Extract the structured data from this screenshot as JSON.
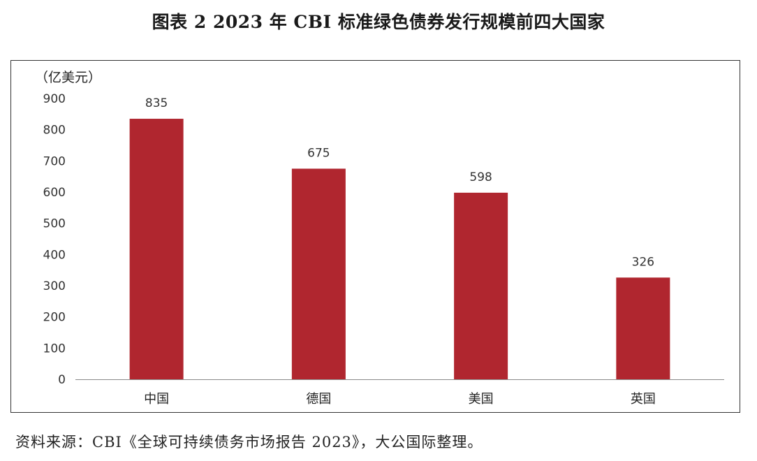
{
  "title": "图表 2  2023 年 CBI 标准绿色债券发行规模前四大国家",
  "unit_label": "（亿美元）",
  "source": "资料来源：CBI《全球可持续债务市场报告 2023》，大公国际整理。",
  "colors": {
    "bar": "#b0262f",
    "axis": "#888888"
  },
  "chart_data": {
    "type": "bar",
    "categories": [
      "中国",
      "德国",
      "美国",
      "英国"
    ],
    "values": [
      835,
      675,
      598,
      326
    ],
    "ylabel": "（亿美元）",
    "ylim": [
      0,
      900
    ],
    "yticks": [
      0,
      100,
      200,
      300,
      400,
      500,
      600,
      700,
      800,
      900
    ],
    "grid": false,
    "legend": "none"
  }
}
